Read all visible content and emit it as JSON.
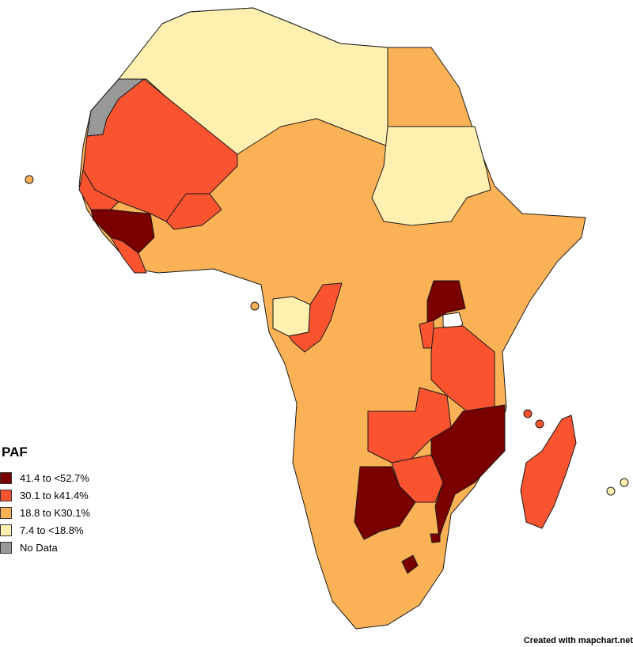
{
  "legend": {
    "title": "PAF",
    "items": [
      {
        "label": "41.4 to <52.7%",
        "color": "#7a0000"
      },
      {
        "label": "30.1 to k41.4%",
        "color": "#f9532f"
      },
      {
        "label": "18.8 to K30.1%",
        "color": "#fbb257"
      },
      {
        "label": "7.4 to <18.8%",
        "color": "#fff0b0"
      },
      {
        "label": "No Data",
        "color": "#999999"
      }
    ]
  },
  "credit": "Created with mapchart.net"
}
